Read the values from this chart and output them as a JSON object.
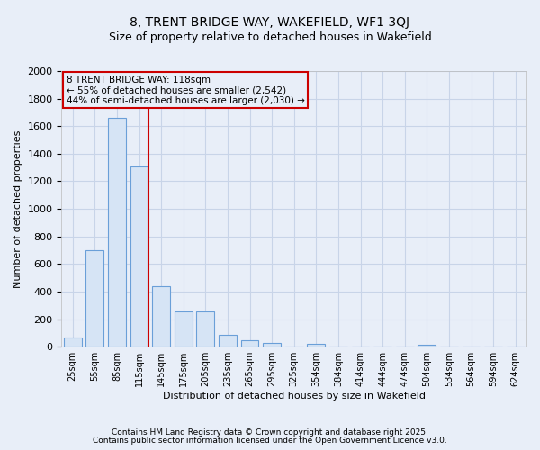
{
  "title1": "8, TRENT BRIDGE WAY, WAKEFIELD, WF1 3QJ",
  "title2": "Size of property relative to detached houses in Wakefield",
  "xlabel": "Distribution of detached houses by size in Wakefield",
  "ylabel": "Number of detached properties",
  "categories": [
    "25sqm",
    "55sqm",
    "85sqm",
    "115sqm",
    "145sqm",
    "175sqm",
    "205sqm",
    "235sqm",
    "265sqm",
    "295sqm",
    "325sqm",
    "354sqm",
    "384sqm",
    "414sqm",
    "444sqm",
    "474sqm",
    "504sqm",
    "534sqm",
    "564sqm",
    "594sqm",
    "624sqm"
  ],
  "values": [
    65,
    700,
    1660,
    1310,
    440,
    255,
    255,
    85,
    50,
    25,
    0,
    20,
    0,
    0,
    0,
    0,
    15,
    0,
    0,
    0,
    0
  ],
  "bar_color": "#d6e4f5",
  "bar_edge_color": "#6a9fd8",
  "grid_color": "#c8d4e8",
  "background_color": "#e8eef8",
  "annotation_box_text": "8 TRENT BRIDGE WAY: 118sqm\n← 55% of detached houses are smaller (2,542)\n44% of semi-detached houses are larger (2,030) →",
  "annotation_box_color": "#cc0000",
  "redline_bin": 3,
  "ylim": [
    0,
    2000
  ],
  "yticks": [
    0,
    200,
    400,
    600,
    800,
    1000,
    1200,
    1400,
    1600,
    1800,
    2000
  ],
  "footnote1": "Contains HM Land Registry data © Crown copyright and database right 2025.",
  "footnote2": "Contains public sector information licensed under the Open Government Licence v3.0."
}
